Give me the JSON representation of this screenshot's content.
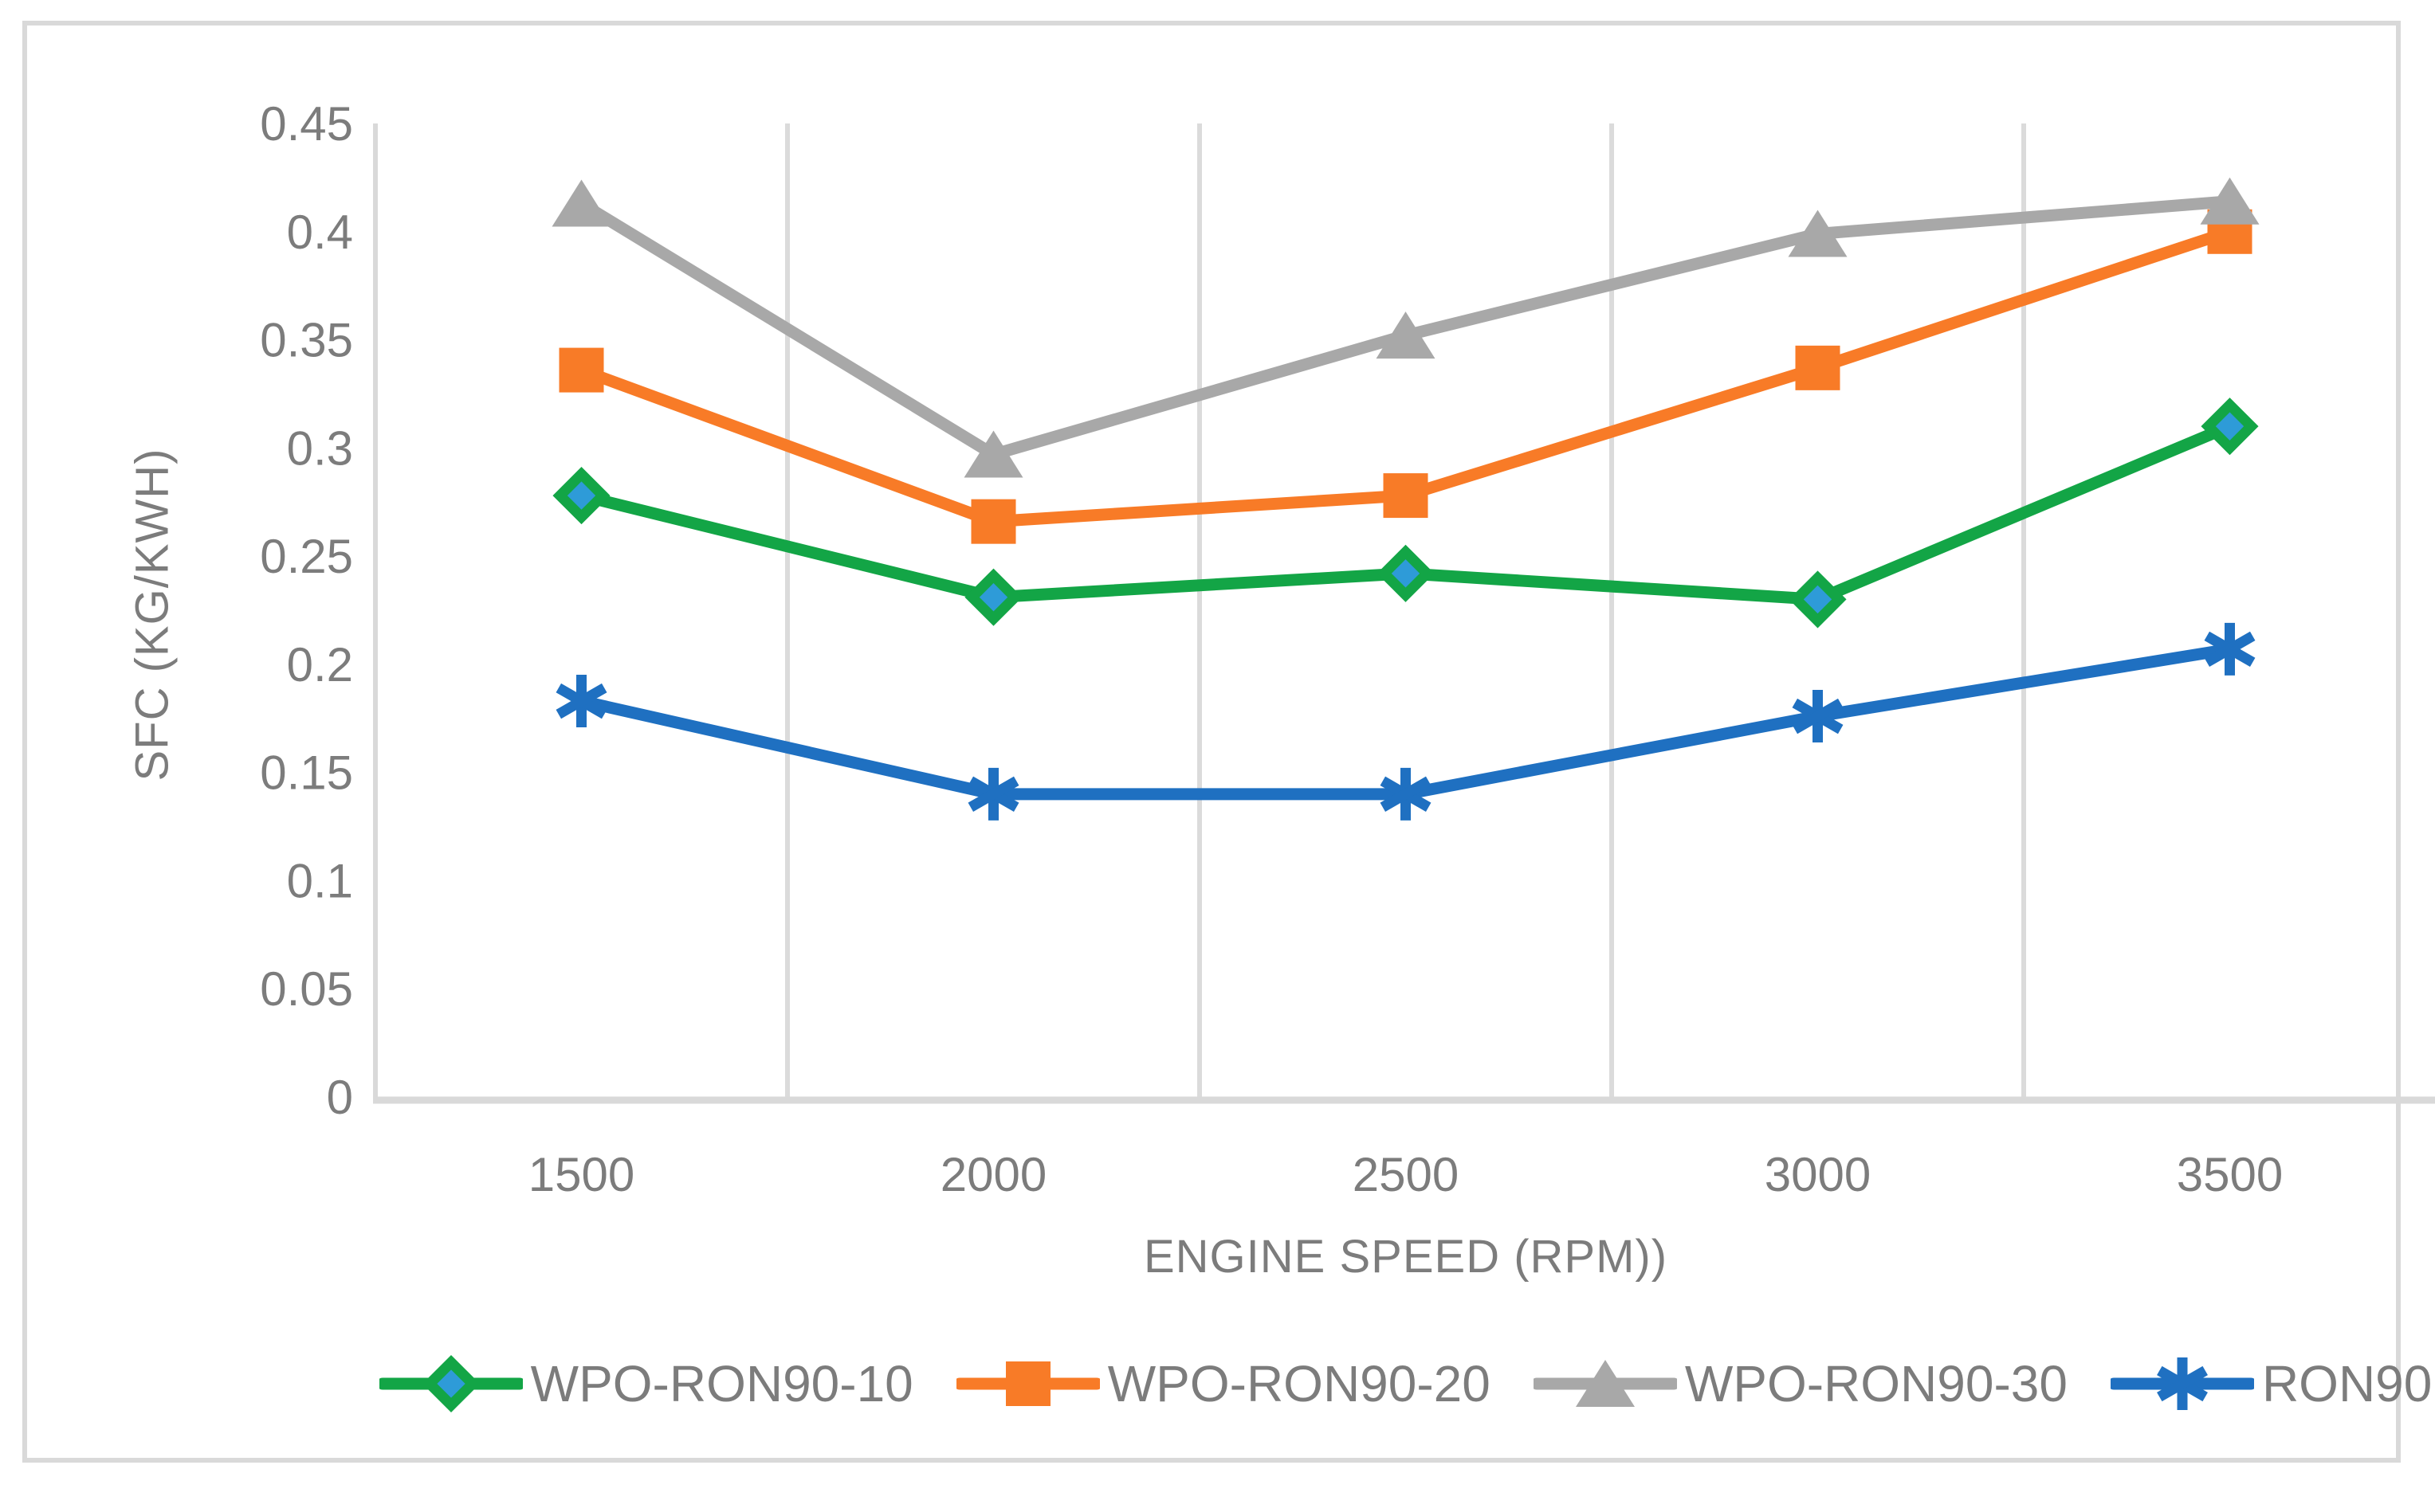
{
  "figure": {
    "background_color": "#FFFFFF",
    "border_color": "#D9D9D9"
  },
  "chart_data": {
    "type": "line",
    "title": "",
    "xlabel": "ENGINE SPEED (RPM))",
    "ylabel": "SFC (KG/KWH)",
    "categories": [
      "1500",
      "2000",
      "2500",
      "3000",
      "3500"
    ],
    "ylim": [
      0,
      0.45
    ],
    "ytick_step": 0.05,
    "ytick_labels": [
      "0",
      "0.05",
      "0.1",
      "0.15",
      "0.2",
      "0.25",
      "0.3",
      "0.35",
      "0.4",
      "0.45"
    ],
    "grid": "vertical-category-boundaries",
    "gridline_color": "#DBDBDB",
    "axis_line_color": "#D9D9D9",
    "axis_text_color": "#7C7C7C",
    "legend_position": "bottom",
    "series": [
      {
        "name": "WPO-RON90-10",
        "color": "#13A546",
        "marker": "diamond",
        "marker_fill": "#2E9BD8",
        "values": [
          0.278,
          0.231,
          0.242,
          0.23,
          0.31
        ]
      },
      {
        "name": "WPO-RON90-20",
        "color": "#F87B27",
        "marker": "square",
        "marker_fill": "#F87B27",
        "values": [
          0.336,
          0.266,
          0.278,
          0.337,
          0.4
        ]
      },
      {
        "name": "WPO-RON90-30",
        "color": "#A8A8A8",
        "marker": "triangle",
        "marker_fill": "#A8A8A8",
        "values": [
          0.413,
          0.297,
          0.352,
          0.399,
          0.414
        ]
      },
      {
        "name": "RON90",
        "color": "#1F70C1",
        "marker": "asterisk",
        "marker_fill": "#1F70C1",
        "values": [
          0.183,
          0.14,
          0.14,
          0.176,
          0.207
        ]
      }
    ]
  }
}
